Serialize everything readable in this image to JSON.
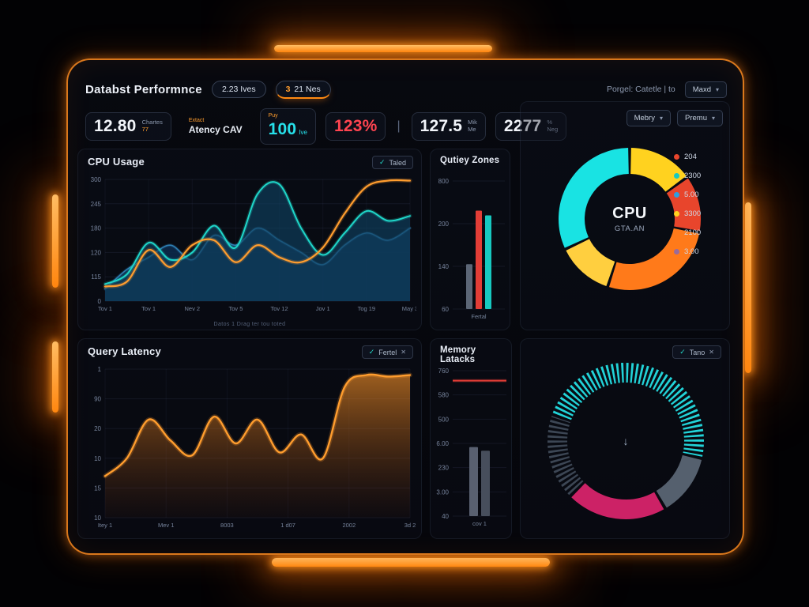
{
  "header": {
    "title": "Databst Performnce",
    "badge1": "2.23 Ives",
    "badge2_num": "3",
    "badge2_text": "21 Nes",
    "right_text": "Porgel: Catetle | to",
    "dropdown_label": "Maxd",
    "chevron": "▾"
  },
  "kpis": {
    "k1_value": "12.80",
    "k1_label": "Chartes",
    "k1_sub": "77",
    "k2_top": "Extact",
    "k2_main": "Atency CAV",
    "k3_top": "Puy",
    "k3_value": "100",
    "k3_unit": "Ive",
    "k4_value": "123%",
    "divider": "|",
    "k5_value": "127.5",
    "k5_l1": "Mik",
    "k5_l2": "Me",
    "k6_value": "2277",
    "k6_l1": "%",
    "k6_l2": "Neg"
  },
  "panels": {
    "cpu": {
      "title": "CPU Usage",
      "badge_check": "✓",
      "badge_label": "Taled",
      "caption": "Datos 1 Drag ter tou toted"
    },
    "zones": {
      "title": "Qutiey Zones"
    },
    "donut1": {
      "dd1": "Mebry",
      "dd2": "Premu",
      "chevron": "▾",
      "center1": "CPU",
      "center2": "GTA.AN"
    },
    "latency": {
      "title": "Query Latency",
      "badge_check": "✓",
      "badge_label": "Fertel",
      "badge_close": "✕"
    },
    "memory": {
      "title": "Memory Latacks"
    },
    "donut2": {
      "badge_check": "✓",
      "badge_label": "Tano",
      "badge_close": "✕",
      "center_icon": "↓"
    }
  },
  "charts": {
    "cpu_usage": {
      "type": "area",
      "ymax": 100,
      "yticks": [
        "300",
        "245",
        "180",
        "120",
        "115",
        "0"
      ],
      "xlabels": [
        "Tov 1",
        "Tov 1",
        "Nev 2",
        "Tov 5",
        "Tov 12",
        "Jov 1",
        "Tog 19",
        "May 3"
      ],
      "series": [
        {
          "name": "load-b",
          "color": "#2e7fb3",
          "width": 1.6,
          "fill": "rgba(12,44,78,0.85)",
          "values": [
            10,
            26,
            36,
            46,
            34,
            54,
            46,
            60,
            50,
            40,
            30,
            46,
            56,
            50,
            60
          ]
        },
        {
          "name": "load-a",
          "color": "#1fd6c9",
          "width": 2,
          "fill": "rgba(16,64,96,0.65)",
          "values": [
            14,
            22,
            48,
            34,
            40,
            62,
            44,
            88,
            96,
            60,
            38,
            56,
            74,
            66,
            70
          ]
        },
        {
          "name": "trend",
          "color": "#ff9d2e",
          "width": 2.2,
          "fill": "none",
          "values": [
            12,
            16,
            42,
            28,
            46,
            50,
            32,
            46,
            36,
            32,
            44,
            72,
            94,
            99,
            99
          ]
        }
      ]
    },
    "qutiey_zones": {
      "type": "bars",
      "ymax": 800,
      "barWidth": 8,
      "yticks": [
        "800",
        "200",
        "140",
        "60"
      ],
      "xlabels": [
        "Fertal"
      ],
      "bars": [
        {
          "color": "#5c6676",
          "value": 280
        },
        {
          "color": "#e23d36",
          "value": 615
        },
        {
          "color": "#17c9c0",
          "value": 585
        }
      ]
    },
    "cpu_donut": {
      "type": "donut",
      "thickness": 33,
      "start": -90,
      "slices": [
        {
          "color": "#ffd21f",
          "value": 15
        },
        {
          "color": "#e8452c",
          "value": 13
        },
        {
          "color": "#ff7a1a",
          "value": 27
        },
        {
          "color": "#ffcf3f",
          "value": 13
        },
        {
          "color": "#19e3e3",
          "value": 32
        }
      ],
      "legend": [
        {
          "color": "#e8452c",
          "label": "204"
        },
        {
          "color": "#17c9c0",
          "label": "2300"
        },
        {
          "color": "#2f9fe0",
          "label": "5.00"
        },
        {
          "color": "#ffd21f",
          "label": "3300"
        },
        {
          "color": "#ff7a1a",
          "label": "2100"
        },
        {
          "color": "#9a6b9a",
          "label": "3.00"
        }
      ]
    },
    "query_latency": {
      "type": "area",
      "ymax": 100,
      "yticks": [
        "1",
        "90",
        "20",
        "10",
        "15",
        "10"
      ],
      "xlabels": [
        "Itey 1",
        "Mev 1",
        "8003",
        "1 d07",
        "2002",
        "3d 2"
      ],
      "series": [
        {
          "name": "latency",
          "color": "#ff9d2e",
          "width": 2.4,
          "fill": {
            "from": "rgba(255,150,40,0.60)",
            "to": "rgba(140,60,10,0.05)"
          },
          "values": [
            28,
            40,
            66,
            52,
            42,
            68,
            50,
            66,
            44,
            56,
            40,
            88,
            96,
            95,
            96
          ]
        }
      ]
    },
    "memory_latacks": {
      "type": "bars",
      "ymax": 800,
      "barWidth": 11,
      "yticks": [
        "760",
        "580",
        "500",
        "6.00",
        "230",
        "3.00",
        "40"
      ],
      "xlabels": [
        "cov 1"
      ],
      "threshold": {
        "value": 745,
        "color": "#e23d36"
      },
      "bars": [
        {
          "color": "#596070",
          "value": 380
        },
        {
          "color": "#474e5c",
          "value": 360
        }
      ]
    },
    "gauge_donut": {
      "type": "donut",
      "thickness": 25,
      "start": -160,
      "slices": [
        {
          "color": "#22d3d8",
          "value": 48,
          "ticks": true
        },
        {
          "color": "#55606e",
          "value": 13
        },
        {
          "color": "#cc2266",
          "value": 21
        },
        {
          "color": "#3c4654",
          "value": 18,
          "ticks": true
        }
      ]
    }
  }
}
